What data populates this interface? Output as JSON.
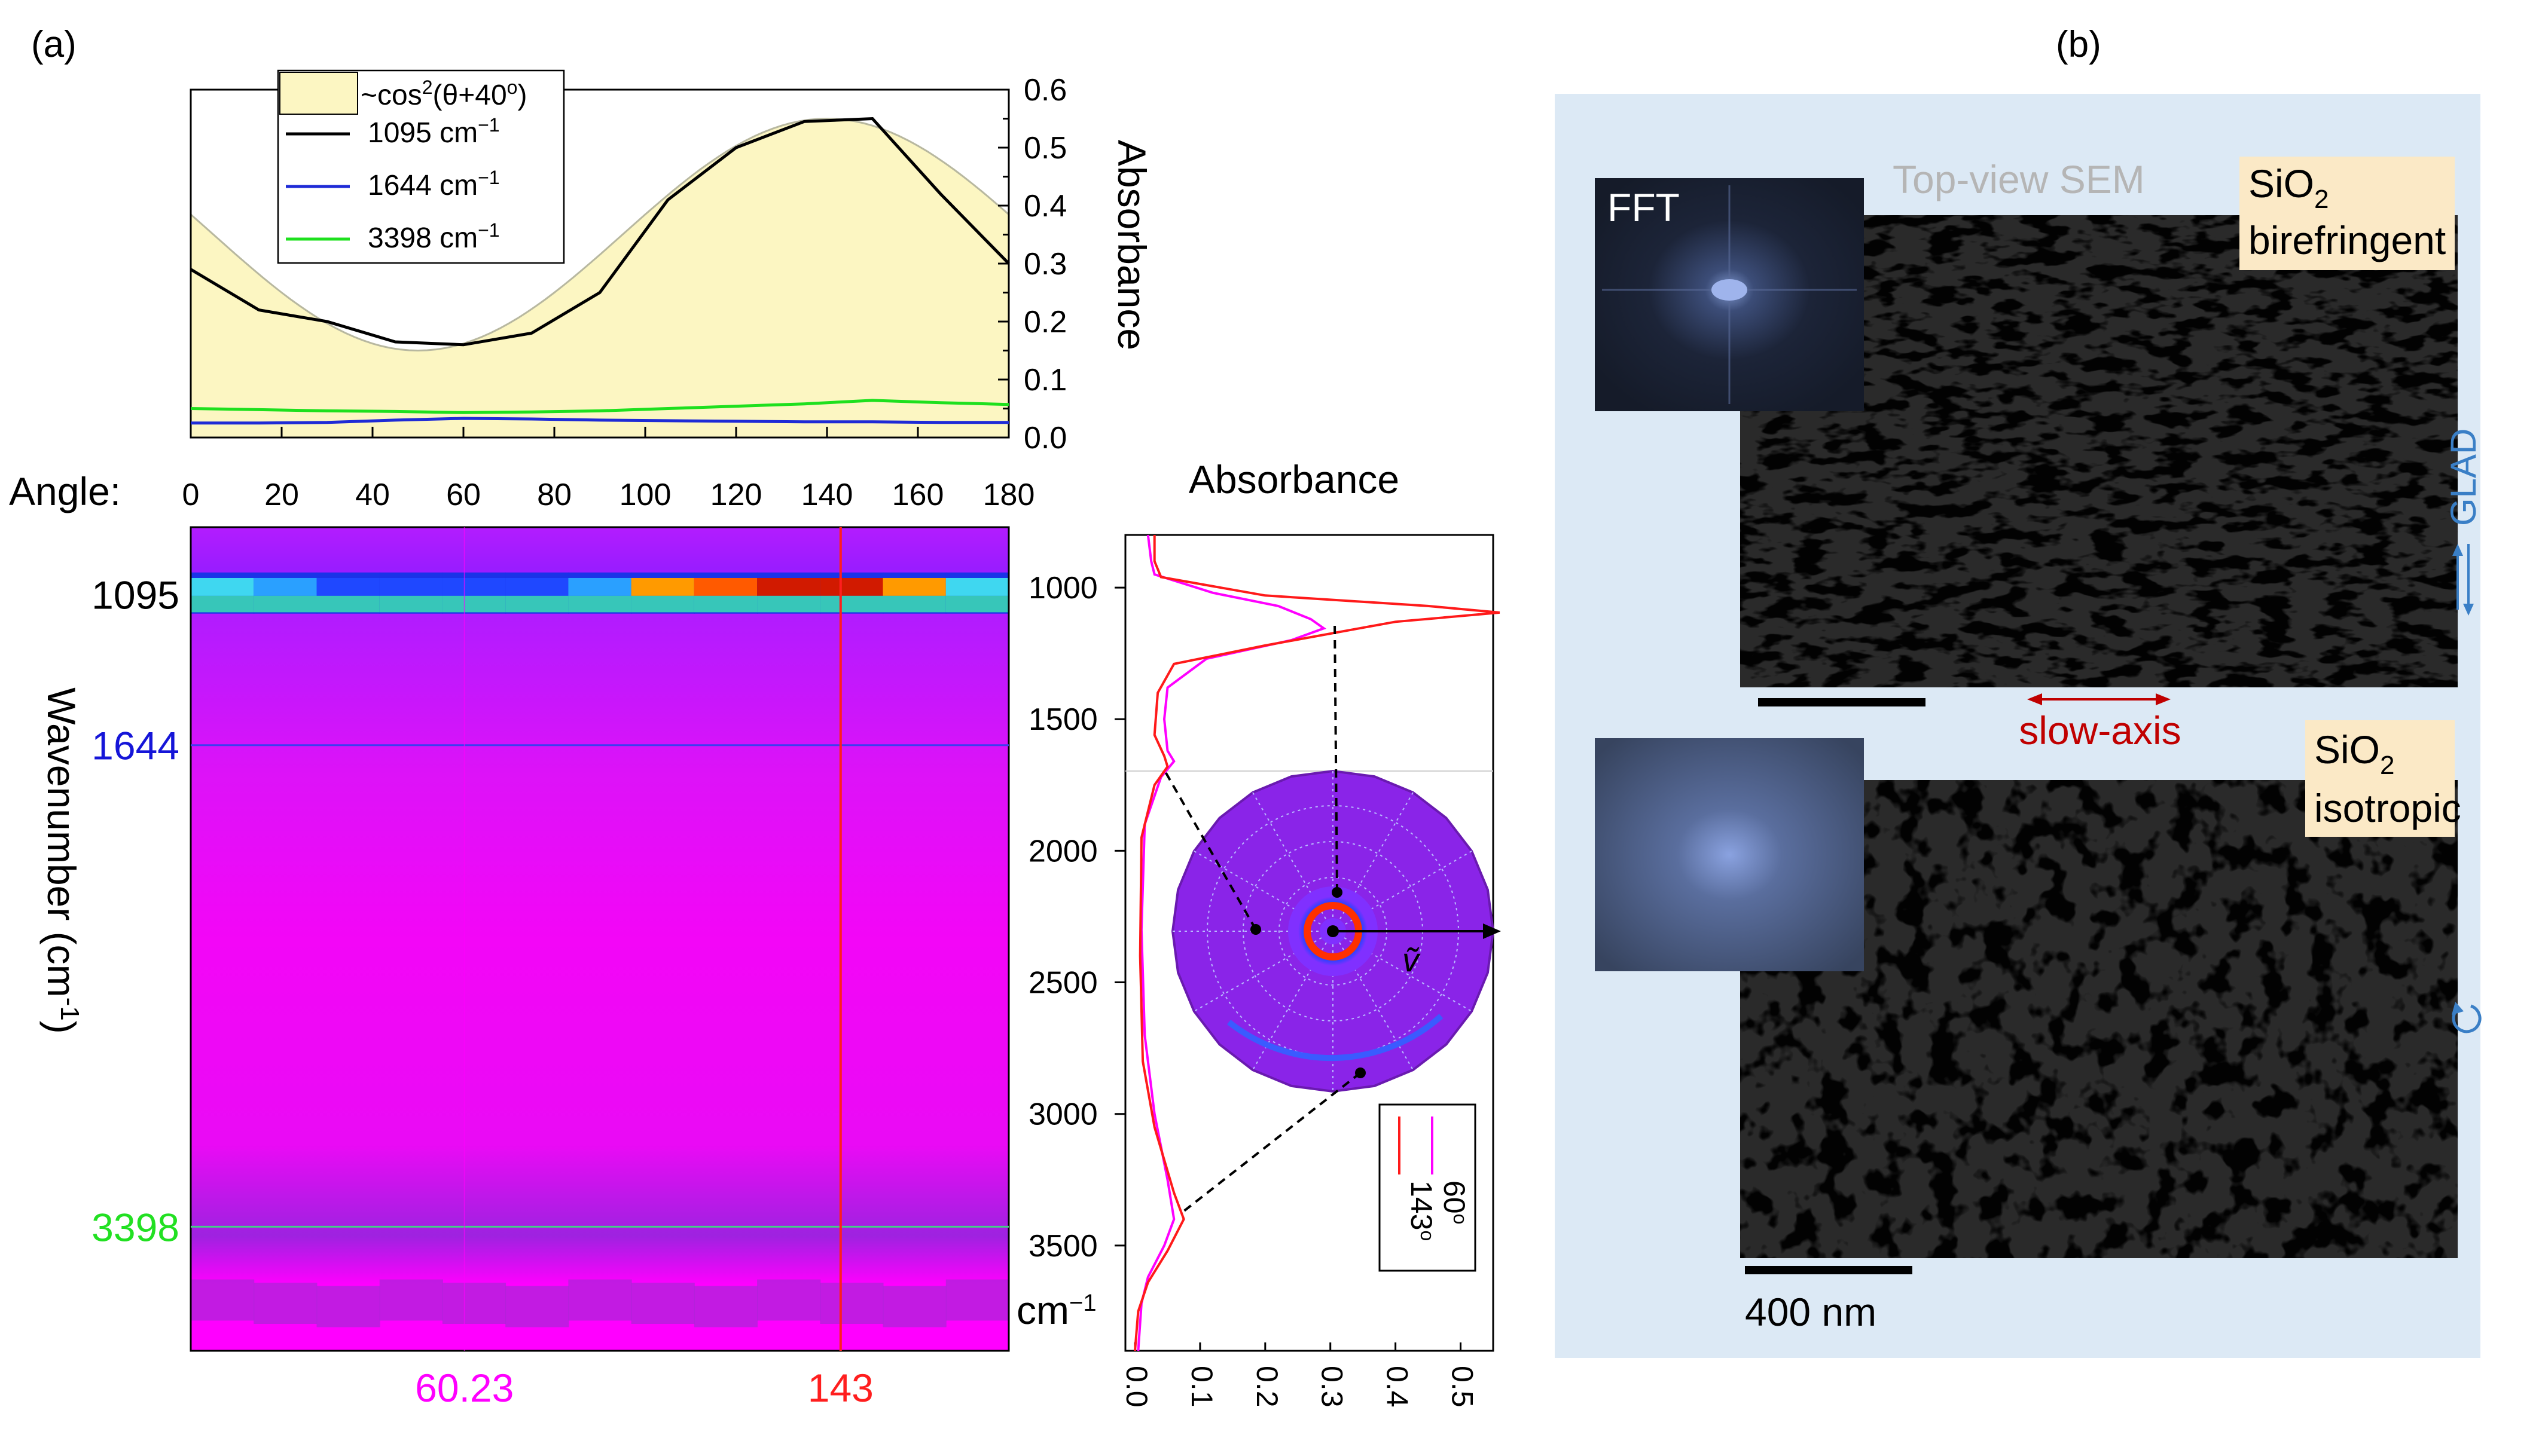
{
  "panel_labels": {
    "a": "(a)",
    "b": "(b)"
  },
  "chart_data": [
    {
      "id": "top-line-chart",
      "type": "line",
      "title": "",
      "xlabel": "Angle:",
      "ylabel": "Absorbance",
      "xlim": [
        0,
        180
      ],
      "ylim": [
        0,
        0.6
      ],
      "xticks": [
        "0",
        "20",
        "40",
        "60",
        "80",
        "100",
        "120",
        "140",
        "160",
        "180"
      ],
      "yticks": [
        "0.0",
        "0.1",
        "0.2",
        "0.3",
        "0.4",
        "0.5",
        "0.6"
      ],
      "legend_position": "top-left",
      "fit": {
        "name": "~cos²(θ+40°)",
        "label_prefix": "~cos",
        "label_sup": "2",
        "label_suffix": "(θ+40",
        "label_deg": "o",
        "label_end": ")",
        "amplitude": 0.4,
        "offset": 0.15,
        "phase_deg": 40
      },
      "x": [
        0,
        15,
        30,
        45,
        60,
        75,
        90,
        105,
        120,
        135,
        150,
        165,
        180
      ],
      "series": [
        {
          "name": "1095 cm-1",
          "label_num": "1095 cm",
          "label_sup": "−1",
          "color": "#000000",
          "values": [
            0.29,
            0.22,
            0.2,
            0.165,
            0.16,
            0.18,
            0.25,
            0.41,
            0.5,
            0.545,
            0.55,
            0.42,
            0.3
          ]
        },
        {
          "name": "1644 cm-1",
          "label_num": "1644 cm",
          "label_sup": "−1",
          "color": "#1e2bd6",
          "values": [
            0.025,
            0.025,
            0.026,
            0.03,
            0.033,
            0.032,
            0.03,
            0.029,
            0.028,
            0.027,
            0.027,
            0.026,
            0.026
          ]
        },
        {
          "name": "3398 cm-1",
          "label_num": "3398 cm",
          "label_sup": "−1",
          "color": "#1ee01e",
          "values": [
            0.05,
            0.048,
            0.046,
            0.045,
            0.043,
            0.044,
            0.046,
            0.05,
            0.054,
            0.058,
            0.064,
            0.06,
            0.057
          ]
        }
      ]
    },
    {
      "id": "heatmap",
      "type": "heatmap",
      "xlabel": "Angle",
      "ylabel": "Wavenumber (cm",
      "ylabel_sup": "-1",
      "ylabel_end": ")",
      "xlim": [
        0,
        180
      ],
      "ylim": [
        850,
        3850
      ],
      "wavenumber_labels": [
        {
          "value": 1095,
          "text": "1095",
          "color": "#000000"
        },
        {
          "value": 1644,
          "text": "1644",
          "color": "#1515d8"
        },
        {
          "value": 3398,
          "text": "3398",
          "color": "#22e022"
        }
      ],
      "angle_markers": [
        {
          "value": 60.23,
          "text": "60.23",
          "color": "#ff00ff"
        },
        {
          "value": 143,
          "text": "143",
          "color": "#ff1e1e"
        }
      ],
      "band_peak_by_angle": [
        0.29,
        0.22,
        0.2,
        0.165,
        0.16,
        0.18,
        0.25,
        0.41,
        0.5,
        0.545,
        0.55,
        0.42,
        0.3
      ]
    },
    {
      "id": "spectrum",
      "type": "line",
      "title": "Absorbance",
      "xlim": [
        0,
        0.55
      ],
      "ylim": [
        800,
        3900
      ],
      "xticks": [
        "0.0",
        "0.1",
        "0.2",
        "0.3",
        "0.4",
        "0.5"
      ],
      "yticks": [
        "1000",
        "1500",
        "2000",
        "2500",
        "3000",
        "3500"
      ],
      "yunit": "cm",
      "yunit_sup": "−1",
      "legend_position": "bottom-right",
      "series": [
        {
          "name": "60°",
          "label": "60",
          "label_deg": "o",
          "color": "#ff00ff",
          "points": [
            [
              0.02,
              800
            ],
            [
              0.025,
              900
            ],
            [
              0.03,
              950
            ],
            [
              0.12,
              1020
            ],
            [
              0.22,
              1070
            ],
            [
              0.27,
              1120
            ],
            [
              0.29,
              1155
            ],
            [
              0.24,
              1200
            ],
            [
              0.11,
              1270
            ],
            [
              0.05,
              1380
            ],
            [
              0.045,
              1500
            ],
            [
              0.05,
              1620
            ],
            [
              0.06,
              1660
            ],
            [
              0.04,
              1720
            ],
            [
              0.015,
              1900
            ],
            [
              0.01,
              2300
            ],
            [
              0.015,
              2700
            ],
            [
              0.03,
              3000
            ],
            [
              0.05,
              3250
            ],
            [
              0.06,
              3400
            ],
            [
              0.045,
              3500
            ],
            [
              0.02,
              3620
            ],
            [
              0.01,
              3720
            ],
            [
              0.005,
              3900
            ]
          ]
        },
        {
          "name": "143°",
          "label": "143",
          "label_deg": "o",
          "color": "#ff1a1a",
          "points": [
            [
              0.03,
              800
            ],
            [
              0.03,
              900
            ],
            [
              0.04,
              960
            ],
            [
              0.2,
              1030
            ],
            [
              0.45,
              1070
            ],
            [
              0.56,
              1095
            ],
            [
              0.4,
              1130
            ],
            [
              0.2,
              1220
            ],
            [
              0.06,
              1290
            ],
            [
              0.035,
              1400
            ],
            [
              0.03,
              1560
            ],
            [
              0.045,
              1640
            ],
            [
              0.05,
              1680
            ],
            [
              0.03,
              1750
            ],
            [
              0.01,
              1950
            ],
            [
              0.008,
              2400
            ],
            [
              0.012,
              2800
            ],
            [
              0.03,
              3050
            ],
            [
              0.06,
              3300
            ],
            [
              0.075,
              3400
            ],
            [
              0.05,
              3520
            ],
            [
              0.02,
              3640
            ],
            [
              0.005,
              3750
            ],
            [
              0.0,
              3900
            ]
          ]
        }
      ]
    }
  ],
  "polar_inset": {
    "symbol": "ṽ",
    "description_icon": "polar-map-icon"
  },
  "sem": {
    "title": "Top-view SEM",
    "fft_label": "FFT",
    "top_label_line1_main": "SiO",
    "top_label_line1_sub": "2",
    "top_label_line2": "birefringent",
    "bottom_label_line1_main": "SiO",
    "bottom_label_line1_sub": "2",
    "bottom_label_line2": "isotropic",
    "slow_axis": "slow-axis",
    "glad": "GLAD",
    "scale_bar": "400 nm",
    "colors": {
      "panel_bg": "#dce9f5",
      "label_bg": "#fbe9c6",
      "arrow": "#c00000",
      "glad": "#3a7fc6"
    }
  }
}
